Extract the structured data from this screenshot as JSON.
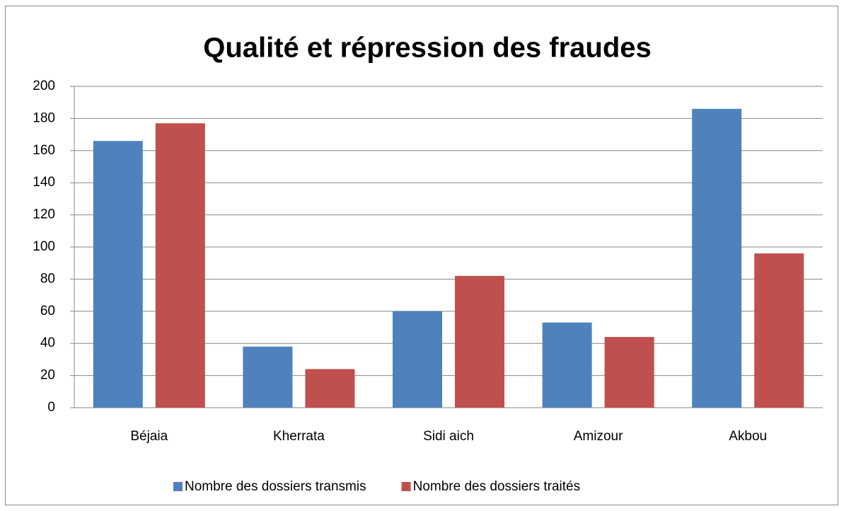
{
  "chart_data": {
    "type": "bar",
    "title": "Qualité et répression des fraudes",
    "categories": [
      "Béjaia",
      "Kherrata",
      "Sidi aich",
      "Amizour",
      "Akbou"
    ],
    "series": [
      {
        "name": "Nombre des dossiers transmis",
        "color": "#4f81bd",
        "values": [
          166,
          38,
          60,
          53,
          186
        ]
      },
      {
        "name": "Nombre des dossiers traités",
        "color": "#c0504d",
        "values": [
          177,
          24,
          82,
          44,
          96
        ]
      }
    ],
    "ylim": [
      0,
      200
    ],
    "yticks": [
      0,
      20,
      40,
      60,
      80,
      100,
      120,
      140,
      160,
      180,
      200
    ],
    "grid": true,
    "legend": "bottom"
  }
}
